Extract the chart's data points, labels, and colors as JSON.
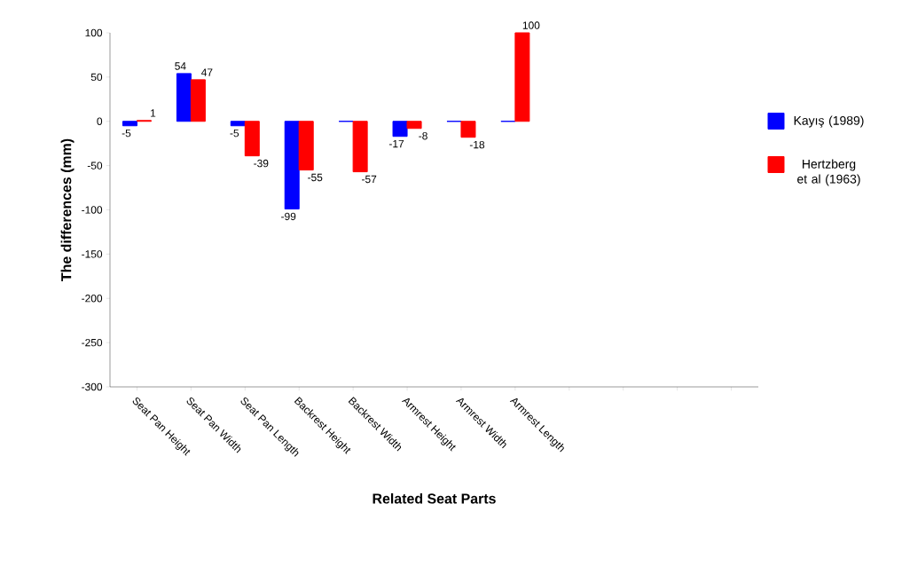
{
  "chart_data": {
    "type": "bar",
    "xlabel": "Related Seat Parts",
    "ylabel": "The differences (mm)",
    "categories": [
      "Seat Pan Height",
      "Seat Pan Width",
      "Seat Pan Length",
      "Backrest Height",
      "Backrest Width",
      "Armrest Height",
      "Armrest Width",
      "Armrest Length",
      null,
      null,
      null,
      null
    ],
    "ylim": [
      -300,
      100
    ],
    "yticks": [
      -300,
      -250,
      -200,
      -150,
      -100,
      -50,
      0,
      50,
      100
    ],
    "legend": "right",
    "series": [
      {
        "name": "Kayış (1989)",
        "color": "#0000ff",
        "values": [
          -5,
          54,
          -5,
          -99,
          0,
          -17,
          0,
          0,
          null,
          null,
          null,
          null
        ],
        "value_labels": [
          "-5",
          "54",
          "-5",
          "-99",
          null,
          "-17",
          null,
          null,
          null,
          null,
          null,
          null
        ]
      },
      {
        "name": "Hertzberg et al (1963)",
        "color": "#ff0000",
        "values": [
          1,
          47,
          -39,
          -55,
          -57,
          -8,
          -18,
          100,
          null,
          null,
          null,
          null
        ],
        "value_labels": [
          "1",
          "47",
          "-39",
          "-55",
          "-57",
          "-8",
          "-18",
          "100",
          null,
          null,
          null,
          null
        ]
      }
    ]
  }
}
